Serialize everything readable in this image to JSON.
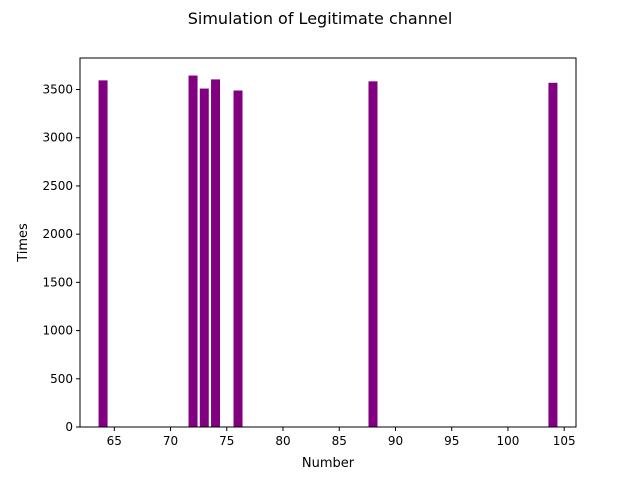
{
  "chart_data": {
    "type": "bar",
    "title": "Simulation of Legitimate channel",
    "xlabel": "Number",
    "ylabel": "Times",
    "x": [
      64,
      72,
      73,
      74,
      76,
      88,
      104
    ],
    "values": [
      3595,
      3645,
      3510,
      3605,
      3490,
      3585,
      3570
    ],
    "color": "#800080",
    "xlim": [
      61.95,
      106.05
    ],
    "ylim": [
      0,
      3827
    ],
    "xticks": [
      65,
      70,
      75,
      80,
      85,
      90,
      95,
      100,
      105
    ],
    "yticks": [
      0,
      500,
      1000,
      1500,
      2000,
      2500,
      3000,
      3500
    ],
    "grid": false
  }
}
